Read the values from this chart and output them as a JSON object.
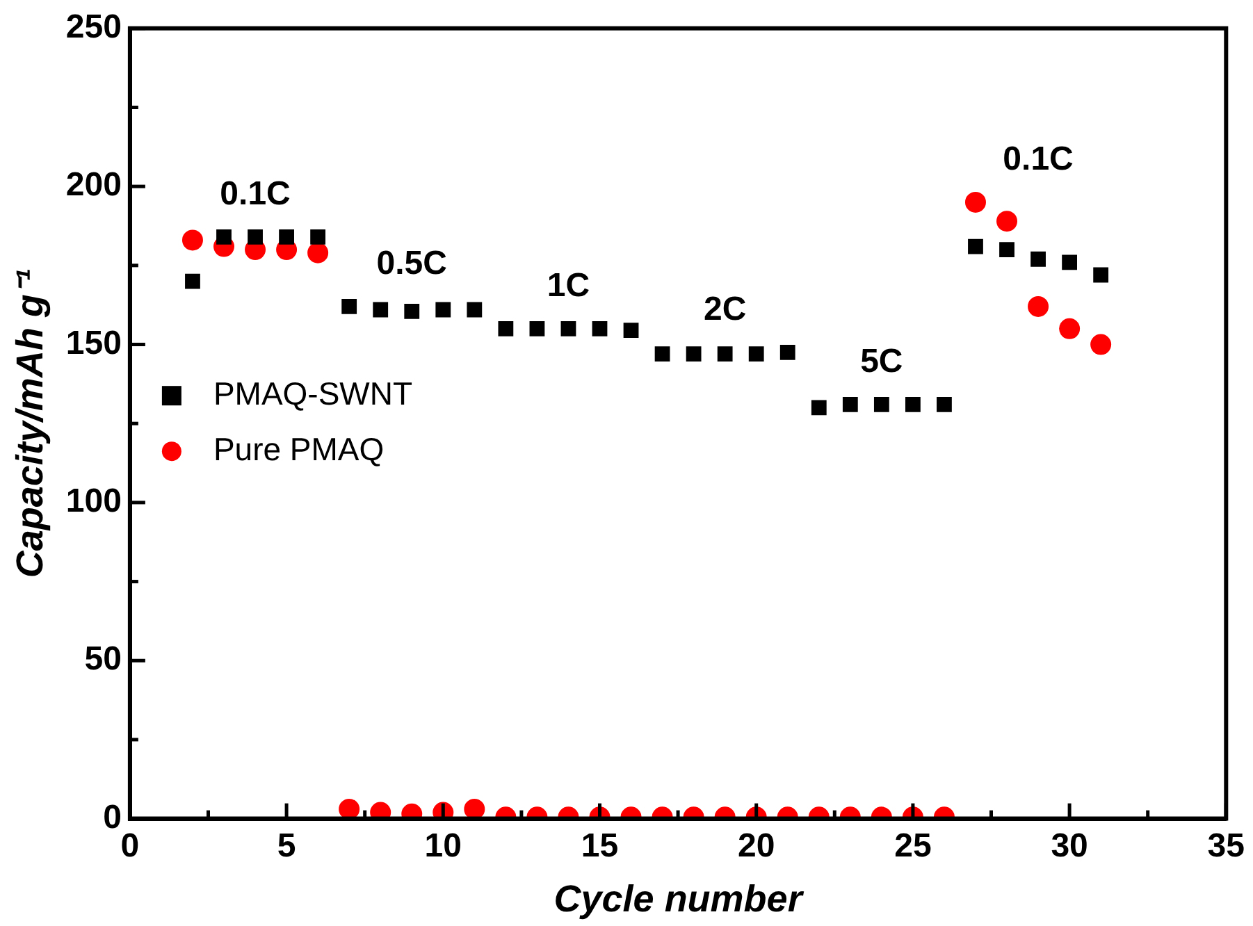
{
  "chart_data": {
    "type": "scatter",
    "xlabel": "Cycle number",
    "ylabel": "Capacity/mAh g⁻¹",
    "x": [
      2,
      3,
      4,
      5,
      6,
      7,
      8,
      9,
      10,
      11,
      12,
      13,
      14,
      15,
      16,
      17,
      18,
      19,
      20,
      21,
      22,
      23,
      24,
      25,
      26,
      27,
      28,
      29,
      30,
      31
    ],
    "series": [
      {
        "name": "PMAQ-SWNT",
        "color": "#000000",
        "marker": "square",
        "values": [
          170,
          184,
          184,
          184,
          184,
          162,
          161,
          160.5,
          161,
          161,
          155,
          155,
          155,
          155,
          154.5,
          147,
          147,
          147,
          147,
          147.5,
          130,
          131,
          131,
          131,
          131,
          181,
          180,
          177,
          176,
          172
        ]
      },
      {
        "name": "Pure PMAQ",
        "color": "#ff0000",
        "marker": "circle",
        "values": [
          183,
          181,
          180,
          180,
          179,
          3,
          2,
          1.5,
          2,
          3,
          0.5,
          0.5,
          0.5,
          0.5,
          0.5,
          0.5,
          0.5,
          0.5,
          0.5,
          0.5,
          0.5,
          0.5,
          0.5,
          0.5,
          0.5,
          195,
          189,
          162,
          155,
          150
        ]
      }
    ],
    "xlim": [
      0,
      35
    ],
    "ylim": [
      0,
      250
    ],
    "xticks": [
      0,
      {
        "value": 2.5,
        "label": null
      },
      5,
      {
        "value": 7.5,
        "label": null
      },
      10,
      {
        "value": 12.5,
        "label": null
      },
      15,
      {
        "value": 17.5,
        "label": null
      },
      20,
      {
        "value": 22.5,
        "label": null
      },
      25,
      {
        "value": 27.5,
        "label": null
      },
      30,
      {
        "value": 32.5,
        "label": null
      },
      35
    ],
    "yticks": [
      0,
      {
        "value": 25,
        "label": null
      },
      50,
      {
        "value": 75,
        "label": null
      },
      100,
      {
        "value": 125,
        "label": null
      },
      150,
      {
        "value": 175,
        "label": null
      },
      200,
      {
        "value": 225,
        "label": null
      },
      250
    ],
    "grid": false,
    "legend": "center left",
    "annotations": [
      "0.1C",
      "0.5C",
      "1C",
      "2C",
      "5C",
      "0.1C"
    ]
  }
}
